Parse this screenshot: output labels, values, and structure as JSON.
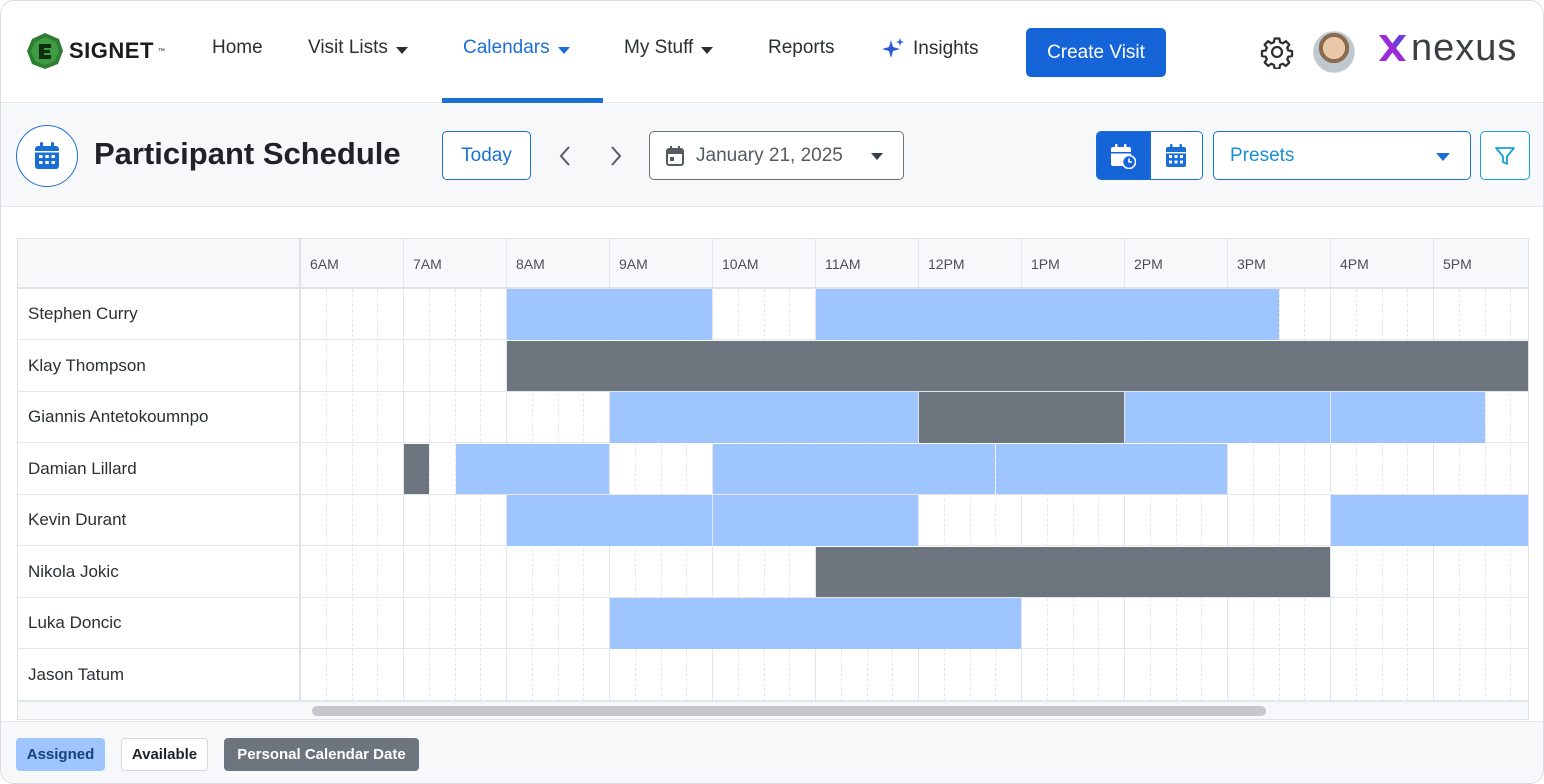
{
  "brand": {
    "name": "SIGNET",
    "tm": "™",
    "partner": "nexus"
  },
  "nav": {
    "home": "Home",
    "visit_lists": "Visit Lists",
    "calendars": "Calendars",
    "my_stuff": "My Stuff",
    "reports": "Reports",
    "insights": "Insights",
    "create_visit": "Create Visit",
    "active_tab": "Calendars"
  },
  "toolbar": {
    "title": "Participant Schedule",
    "today": "Today",
    "date": "January 21, 2025",
    "presets": "Presets",
    "active_view": "timeline"
  },
  "schedule": {
    "hours": [
      "6AM",
      "7AM",
      "8AM",
      "9AM",
      "10AM",
      "11AM",
      "12PM",
      "1PM",
      "2PM",
      "3PM",
      "4PM",
      "5PM"
    ],
    "participants": [
      {
        "name": "Stephen Curry",
        "blocks": [
          {
            "type": "assigned",
            "start": 8.0,
            "end": 10.0
          },
          {
            "type": "assigned",
            "start": 11.0,
            "end": 15.5
          }
        ]
      },
      {
        "name": "Klay Thompson",
        "blocks": [
          {
            "type": "personal",
            "start": 8.0,
            "end": 18.0
          }
        ]
      },
      {
        "name": "Giannis Antetokoumnpo",
        "blocks": [
          {
            "type": "assigned",
            "start": 9.0,
            "end": 12.0
          },
          {
            "type": "personal",
            "start": 12.0,
            "end": 14.0
          },
          {
            "type": "assigned",
            "start": 14.0,
            "end": 16.0
          },
          {
            "type": "assigned",
            "start": 16.0,
            "end": 17.5
          }
        ]
      },
      {
        "name": "Damian Lillard",
        "blocks": [
          {
            "type": "personal",
            "start": 7.0,
            "end": 7.25
          },
          {
            "type": "assigned",
            "start": 7.5,
            "end": 9.0
          },
          {
            "type": "assigned",
            "start": 10.0,
            "end": 12.75
          },
          {
            "type": "assigned",
            "start": 12.75,
            "end": 15.0
          }
        ]
      },
      {
        "name": "Kevin Durant",
        "blocks": [
          {
            "type": "assigned",
            "start": 8.0,
            "end": 10.0
          },
          {
            "type": "assigned",
            "start": 10.0,
            "end": 12.0
          },
          {
            "type": "assigned",
            "start": 16.0,
            "end": 18.0
          }
        ]
      },
      {
        "name": "Nikola Jokic",
        "blocks": [
          {
            "type": "personal",
            "start": 11.0,
            "end": 16.0
          }
        ]
      },
      {
        "name": "Luka Doncic",
        "blocks": [
          {
            "type": "assigned",
            "start": 9.0,
            "end": 13.0
          }
        ]
      },
      {
        "name": "Jason Tatum",
        "blocks": []
      }
    ]
  },
  "legend": {
    "assigned": "Assigned",
    "available": "Available",
    "personal": "Personal Calendar Date"
  },
  "colors": {
    "primary": "#1565d8",
    "assigned": "#9ec5fe",
    "personal": "#6c757d",
    "available": "#ffffff"
  },
  "icons": [
    "signet-logo-icon",
    "insights-sparkle-icon",
    "gear-icon",
    "calendar-icon",
    "chevron-left-icon",
    "chevron-right-icon",
    "calendar-clock-icon",
    "filter-icon",
    "nexus-x-icon"
  ]
}
